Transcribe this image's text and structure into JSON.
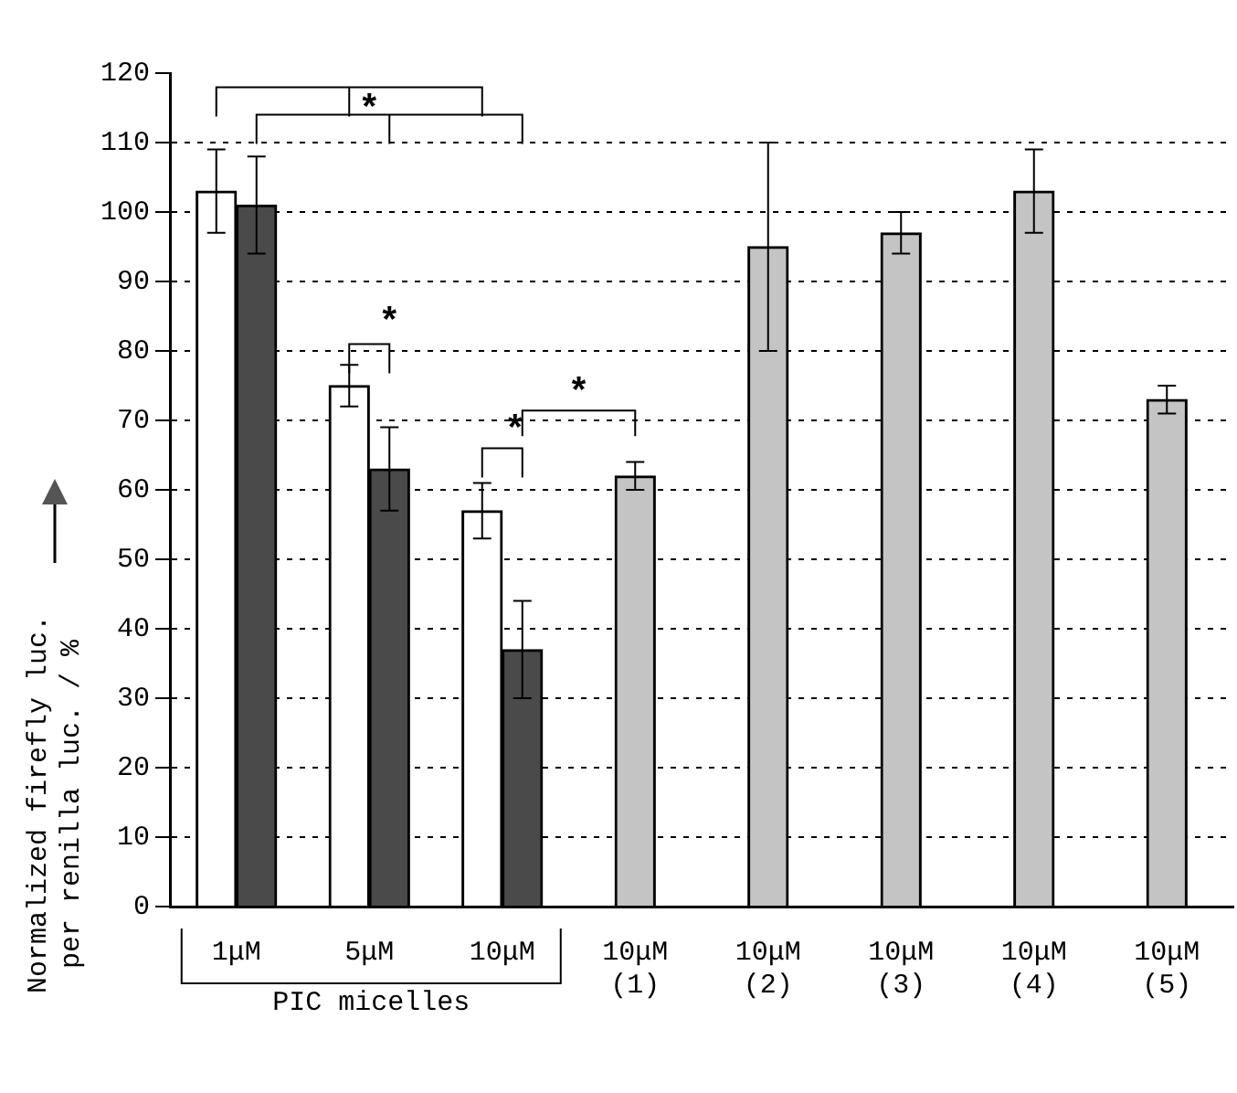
{
  "chart_data": {
    "type": "bar",
    "ylabel": "Normalized firefly luc.\nper renilla luc. / %",
    "categories": [
      "1μM",
      "5μM",
      "10μM",
      "10μM\n(1)",
      "10μM\n(2)",
      "10μM\n(3)",
      "10μM\n(4)",
      "10μM\n(5)"
    ],
    "series": [
      {
        "color": "#ffffff",
        "values": [
          103,
          75,
          57,
          null,
          null,
          null,
          null,
          null
        ],
        "errors": [
          6,
          3,
          4,
          null,
          null,
          null,
          null,
          null
        ]
      },
      {
        "color": "#4a4a4a",
        "values": [
          101,
          63,
          37,
          null,
          null,
          null,
          null,
          null
        ],
        "errors": [
          7,
          6,
          7,
          null,
          null,
          null,
          null,
          null
        ]
      },
      {
        "color": "#c4c4c4",
        "values": [
          null,
          null,
          null,
          62,
          95,
          97,
          103,
          73
        ],
        "errors": [
          null,
          null,
          null,
          2,
          15,
          3,
          6,
          2
        ]
      }
    ],
    "ylim": [
      0,
      120
    ],
    "yticks": [
      0,
      10,
      20,
      30,
      40,
      50,
      60,
      70,
      80,
      90,
      100,
      110,
      120
    ],
    "grid": "y",
    "legend": false,
    "annotations": [
      "*",
      "*",
      "*",
      "*",
      "PIC micelles"
    ]
  }
}
